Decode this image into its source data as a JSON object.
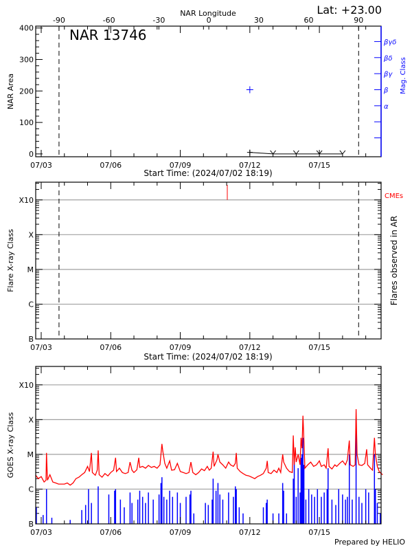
{
  "chart_data": [
    {
      "type": "line",
      "title": "NAR 13746",
      "corner_label": "Lat: +23.00",
      "top_axis_label": "NAR Longitude",
      "top_ticks": [
        -90,
        -60,
        -30,
        0,
        30,
        60,
        90
      ],
      "lon_range": [
        -104,
        103.5
      ],
      "ylabel": "NAR Area",
      "yticks": [
        0,
        100,
        200,
        300,
        400
      ],
      "ylim": [
        -9,
        406
      ],
      "xlabel": "Start Time: (2024/07/02 18:19)",
      "xticks": [
        "07/03",
        "07/06",
        "07/09",
        "07/12",
        "07/15"
      ],
      "right_axis_label": "Mag. Class",
      "mag_classes": [
        "",
        "",
        "α",
        "β",
        "βγ",
        "βδ",
        "βγδ"
      ],
      "mag_class_step": 51,
      "limb_longitudes": [
        -90,
        90
      ],
      "area_points": [
        [
          "07/12 00:00",
          5
        ],
        [
          "07/13 00:00",
          0
        ],
        [
          "07/14 00:00",
          0
        ],
        [
          "07/15 00:00",
          0
        ],
        [
          "07/16 00:00",
          0
        ]
      ],
      "mag_points": [
        [
          "07/12 00:00",
          "β"
        ]
      ],
      "colors": {
        "axis": "#000000",
        "mag": "#0000ff"
      }
    },
    {
      "type": "scatter",
      "ylabel": "Flare X-ray Class",
      "yticks": [
        "B",
        "C",
        "M",
        "X",
        "X10"
      ],
      "ylim_log": [
        -7,
        -2.49
      ],
      "grid": true,
      "xlabel": "Start Time: (2024/07/02 18:19)",
      "xticks": [
        "07/03",
        "07/06",
        "07/09",
        "07/12",
        "07/15"
      ],
      "right_axis_label": "Flares observed in AR",
      "cme_label": "CMEs",
      "cme_times": [
        "07/11 00:40"
      ],
      "limb_longitudes": [
        -90,
        90
      ],
      "flares": [],
      "colors": {
        "cme": "#ff0000",
        "grid": "#a0a0a0"
      }
    },
    {
      "type": "line",
      "ylabel": "GOES X-ray Class",
      "yticks": [
        "B",
        "C",
        "M",
        "X",
        "X10"
      ],
      "ylim_log": [
        -7,
        -2.47
      ],
      "grid": true,
      "xticks": [
        "07/03",
        "07/06",
        "07/09",
        "07/12",
        "07/15"
      ],
      "footer": "Prepared by HELIO",
      "colors": {
        "long": "#ff0000",
        "short": "#0000ff",
        "grid": "#a0a0a0"
      },
      "long_channel": [
        [
          "07/02 18:19",
          "C2.5"
        ],
        [
          "07/02 21:00",
          "C2.0"
        ],
        [
          "07/03 00:00",
          "C2.3"
        ],
        [
          "07/03 03:00",
          "C1.6"
        ],
        [
          "07/03 05:00",
          "C1.8"
        ],
        [
          "07/03 05:30",
          "M1.1"
        ],
        [
          "07/03 06:30",
          "C1.8"
        ],
        [
          "07/03 09:00",
          "C2.6"
        ],
        [
          "07/03 12:00",
          "C1.6"
        ],
        [
          "07/03 15:00",
          "C1.5"
        ],
        [
          "07/03 18:00",
          "C1.4"
        ],
        [
          "07/04 00:00",
          "C1.4"
        ],
        [
          "07/04 03:00",
          "C1.5"
        ],
        [
          "07/04 06:00",
          "C1.3"
        ],
        [
          "07/04 09:00",
          "C1.5"
        ],
        [
          "07/04 12:00",
          "C2.0"
        ],
        [
          "07/04 15:00",
          "C2.2"
        ],
        [
          "07/04 18:00",
          "C2.6"
        ],
        [
          "07/04 21:00",
          "C3.0"
        ],
        [
          "07/05 00:00",
          "C4.5"
        ],
        [
          "07/05 02:00",
          "C3.2"
        ],
        [
          "07/05 04:00",
          "M1.1"
        ],
        [
          "07/05 05:00",
          "C3.0"
        ],
        [
          "07/05 08:00",
          "C2.5"
        ],
        [
          "07/05 10:00",
          "C3.5"
        ],
        [
          "07/05 11:00",
          "M1.3"
        ],
        [
          "07/05 12:00",
          "C2.6"
        ],
        [
          "07/05 15:00",
          "C2.2"
        ],
        [
          "07/05 18:00",
          "C2.8"
        ],
        [
          "07/05 21:00",
          "C2.4"
        ],
        [
          "07/06 00:00",
          "C3.0"
        ],
        [
          "07/06 03:00",
          "C3.5"
        ],
        [
          "07/06 05:00",
          "C8.0"
        ],
        [
          "07/06 06:00",
          "C3.2"
        ],
        [
          "07/06 09:00",
          "C4.0"
        ],
        [
          "07/06 12:00",
          "C3.0"
        ],
        [
          "07/06 15:00",
          "C2.8"
        ],
        [
          "07/06 18:00",
          "C3.0"
        ],
        [
          "07/06 20:00",
          "C6.0"
        ],
        [
          "07/06 22:00",
          "C3.5"
        ],
        [
          "07/07 00:00",
          "C3.0"
        ],
        [
          "07/07 03:00",
          "C3.6"
        ],
        [
          "07/07 05:00",
          "C8.0"
        ],
        [
          "07/07 06:00",
          "C4.2"
        ],
        [
          "07/07 09:00",
          "C4.5"
        ],
        [
          "07/07 12:00",
          "C4.0"
        ],
        [
          "07/07 15:00",
          "C4.8"
        ],
        [
          "07/07 18:00",
          "C4.2"
        ],
        [
          "07/07 21:00",
          "C4.5"
        ],
        [
          "07/08 00:00",
          "C4.0"
        ],
        [
          "07/08 03:00",
          "C5.0"
        ],
        [
          "07/08 05:00",
          "M2.0"
        ],
        [
          "07/08 06:00",
          "M1.2"
        ],
        [
          "07/08 08:00",
          "C5.5"
        ],
        [
          "07/08 10:00",
          "C4.0"
        ],
        [
          "07/08 13:00",
          "C6.5"
        ],
        [
          "07/08 15:00",
          "C3.5"
        ],
        [
          "07/08 18:00",
          "C3.6"
        ],
        [
          "07/08 21:00",
          "C5.5"
        ],
        [
          "07/09 00:00",
          "C3.2"
        ],
        [
          "07/09 03:00",
          "C3.0"
        ],
        [
          "07/09 06:00",
          "C2.8"
        ],
        [
          "07/09 09:00",
          "C3.0"
        ],
        [
          "07/09 11:00",
          "C6.0"
        ],
        [
          "07/09 13:00",
          "C3.0"
        ],
        [
          "07/09 16:00",
          "C2.6"
        ],
        [
          "07/09 19:00",
          "C3.0"
        ],
        [
          "07/09 22:00",
          "C3.8"
        ],
        [
          "07/10 01:00",
          "C3.4"
        ],
        [
          "07/10 04:00",
          "C4.5"
        ],
        [
          "07/10 06:00",
          "C3.5"
        ],
        [
          "07/10 08:00",
          "C4.0"
        ],
        [
          "07/10 10:00",
          "M1.2"
        ],
        [
          "07/10 11:00",
          "C4.5"
        ],
        [
          "07/10 14:00",
          "C7.0"
        ],
        [
          "07/10 15:00",
          "M1.0"
        ],
        [
          "07/10 17:00",
          "C6.0"
        ],
        [
          "07/10 20:00",
          "C5.0"
        ],
        [
          "07/10 23:00",
          "C4.0"
        ],
        [
          "07/11 02:00",
          "C6.0"
        ],
        [
          "07/11 04:00",
          "C5.0"
        ],
        [
          "07/11 07:00",
          "C4.5"
        ],
        [
          "07/11 09:00",
          "C5.5"
        ],
        [
          "07/11 10:00",
          "M1.1"
        ],
        [
          "07/11 11:00",
          "C4.0"
        ],
        [
          "07/11 14:00",
          "C3.2"
        ],
        [
          "07/11 17:00",
          "C2.8"
        ],
        [
          "07/11 20:00",
          "C2.5"
        ],
        [
          "07/11 23:00",
          "C2.4"
        ],
        [
          "07/12 02:00",
          "C2.2"
        ],
        [
          "07/12 05:00",
          "C2.0"
        ],
        [
          "07/12 08:00",
          "C2.3"
        ],
        [
          "07/12 11:00",
          "C2.5"
        ],
        [
          "07/12 14:00",
          "C2.8"
        ],
        [
          "07/12 17:00",
          "C4.0"
        ],
        [
          "07/12 18:00",
          "C6.5"
        ],
        [
          "07/12 19:00",
          "C3.0"
        ],
        [
          "07/12 22:00",
          "C2.8"
        ],
        [
          "07/13 01:00",
          "C3.5"
        ],
        [
          "07/13 04:00",
          "C3.0"
        ],
        [
          "07/13 06:00",
          "C4.0"
        ],
        [
          "07/13 08:00",
          "C3.0"
        ],
        [
          "07/13 10:00",
          "M1.0"
        ],
        [
          "07/13 11:00",
          "C6.0"
        ],
        [
          "07/13 14:00",
          "C4.0"
        ],
        [
          "07/13 17:00",
          "C3.2"
        ],
        [
          "07/13 20:00",
          "C3.0"
        ],
        [
          "07/13 21:00",
          "M3.5"
        ],
        [
          "07/13 22:00",
          "C5.0"
        ],
        [
          "07/13 23:00",
          "M1.6"
        ],
        [
          "07/14 00:00",
          "C6.0"
        ],
        [
          "07/14 02:00",
          "M1.0"
        ],
        [
          "07/14 04:00",
          "C5.0"
        ],
        [
          "07/14 05:00",
          "M3.0"
        ],
        [
          "07/14 06:00",
          "M1.5"
        ],
        [
          "07/14 07:00",
          "X1.3"
        ],
        [
          "07/14 08:00",
          "M2.5"
        ],
        [
          "07/14 09:00",
          "C4.0"
        ],
        [
          "07/14 12:00",
          "C5.0"
        ],
        [
          "07/14 15:00",
          "C6.0"
        ],
        [
          "07/14 18:00",
          "C4.5"
        ],
        [
          "07/14 21:00",
          "C5.0"
        ],
        [
          "07/15 00:00",
          "C6.5"
        ],
        [
          "07/15 02:00",
          "C4.5"
        ],
        [
          "07/15 05:00",
          "C5.0"
        ],
        [
          "07/15 07:00",
          "C4.0"
        ],
        [
          "07/15 09:00",
          "M1.5"
        ],
        [
          "07/15 10:00",
          "C4.5"
        ],
        [
          "07/15 13:00",
          "C3.8"
        ],
        [
          "07/15 16:00",
          "C5.0"
        ],
        [
          "07/15 18:00",
          "C4.5"
        ],
        [
          "07/15 21:00",
          "C5.5"
        ],
        [
          "07/16 00:00",
          "C6.5"
        ],
        [
          "07/16 03:00",
          "C5.0"
        ],
        [
          "07/16 05:00",
          "C7.0"
        ],
        [
          "07/16 07:00",
          "M2.5"
        ],
        [
          "07/16 08:00",
          "C5.0"
        ],
        [
          "07/16 11:00",
          "C4.5"
        ],
        [
          "07/16 13:00",
          "C5.0"
        ],
        [
          "07/16 14:00",
          "X2.0"
        ],
        [
          "07/16 15:00",
          "M1.0"
        ],
        [
          "07/16 17:00",
          "C5.0"
        ],
        [
          "07/16 20:00",
          "C4.8"
        ],
        [
          "07/16 23:00",
          "C5.5"
        ],
        [
          "07/17 01:00",
          "M1.4"
        ],
        [
          "07/17 02:00",
          "C5.0"
        ],
        [
          "07/17 05:00",
          "C4.0"
        ],
        [
          "07/17 07:00",
          "C3.5"
        ],
        [
          "07/17 09:00",
          "M3.0"
        ],
        [
          "07/17 10:00",
          "M1.0"
        ],
        [
          "07/17 12:00",
          "C4.5"
        ],
        [
          "07/17 14:00",
          "C3.2"
        ],
        [
          "07/17 16:00",
          "C2.8"
        ],
        [
          "07/17 17:30",
          "C2.6"
        ]
      ],
      "short_channel": [
        [
          "07/02 19:00",
          "B3.0"
        ],
        [
          "07/03 02:00",
          "B1.8"
        ],
        [
          "07/03 05:30",
          "C1.0"
        ],
        [
          "07/03 11:00",
          "B1.5"
        ],
        [
          "07/04 06:00",
          "B1.3"
        ],
        [
          "07/04 18:00",
          "B2.5"
        ],
        [
          "07/04 22:00",
          "B3.5"
        ],
        [
          "07/05 01:00",
          "C1.0"
        ],
        [
          "07/05 04:00",
          "B4.0"
        ],
        [
          "07/05 11:00",
          "C1.2"
        ],
        [
          "07/05 22:00",
          "B7.0"
        ],
        [
          "07/06 04:00",
          "B9.0"
        ],
        [
          "07/06 05:00",
          "C1.0"
        ],
        [
          "07/06 10:00",
          "B5.0"
        ],
        [
          "07/06 14:00",
          "B3.0"
        ],
        [
          "07/06 20:00",
          "B8.0"
        ],
        [
          "07/06 22:00",
          "B4.0"
        ],
        [
          "07/07 04:00",
          "B5.0"
        ],
        [
          "07/07 06:00",
          "B9.0"
        ],
        [
          "07/07 09:00",
          "B6.0"
        ],
        [
          "07/07 12:00",
          "B4.0"
        ],
        [
          "07/07 15:00",
          "B8.0"
        ],
        [
          "07/07 20:00",
          "B5.0"
        ],
        [
          "07/08 02:00",
          "B7.0"
        ],
        [
          "07/08 04:00",
          "C1.5"
        ],
        [
          "07/08 05:00",
          "C2.2"
        ],
        [
          "07/08 07:00",
          "B6.0"
        ],
        [
          "07/08 10:00",
          "B5.0"
        ],
        [
          "07/08 13:00",
          "B9.0"
        ],
        [
          "07/08 16:00",
          "B6.0"
        ],
        [
          "07/08 21:00",
          "B8.0"
        ],
        [
          "07/09 00:00",
          "B4.0"
        ],
        [
          "07/09 06:00",
          "B6.0"
        ],
        [
          "07/09 10:00",
          "B7.0"
        ],
        [
          "07/09 11:00",
          "B9.0"
        ],
        [
          "07/09 14:00",
          "B2.0"
        ],
        [
          "07/10 02:00",
          "B4.0"
        ],
        [
          "07/10 05:00",
          "B3.5"
        ],
        [
          "07/10 09:00",
          "B5.0"
        ],
        [
          "07/10 10:00",
          "C2.0"
        ],
        [
          "07/10 13:00",
          "B9.0"
        ],
        [
          "07/10 15:00",
          "C1.5"
        ],
        [
          "07/10 17:00",
          "B7.0"
        ],
        [
          "07/10 20:00",
          "B5.0"
        ],
        [
          "07/11 02:00",
          "B8.0"
        ],
        [
          "07/11 07:00",
          "B6.0"
        ],
        [
          "07/11 09:00",
          "C1.2"
        ],
        [
          "07/11 10:00",
          "C1.0"
        ],
        [
          "07/11 13:00",
          "B3.0"
        ],
        [
          "07/11 17:00",
          "B2.0"
        ],
        [
          "07/12 14:00",
          "B3.0"
        ],
        [
          "07/12 17:00",
          "B4.0"
        ],
        [
          "07/12 18:00",
          "B5.0"
        ],
        [
          "07/13 00:00",
          "B2.0"
        ],
        [
          "07/13 06:00",
          "B2.0"
        ],
        [
          "07/13 10:00",
          "C1.5"
        ],
        [
          "07/13 11:00",
          "B9.0"
        ],
        [
          "07/13 14:00",
          "B2.0"
        ],
        [
          "07/13 21:00",
          "C2.0"
        ],
        [
          "07/13 22:00",
          "M1.0"
        ],
        [
          "07/14 00:00",
          "B6.0"
        ],
        [
          "07/14 02:00",
          "C4.0"
        ],
        [
          "07/14 04:00",
          "B8.0"
        ],
        [
          "07/14 05:00",
          "C8.0"
        ],
        [
          "07/14 06:00",
          "M1.0"
        ],
        [
          "07/14 07:00",
          "M3.0"
        ],
        [
          "07/14 08:00",
          "C5.0"
        ],
        [
          "07/14 10:00",
          "B5.0"
        ],
        [
          "07/14 13:00",
          "C1.0"
        ],
        [
          "07/14 16:00",
          "B7.0"
        ],
        [
          "07/14 19:00",
          "B6.0"
        ],
        [
          "07/14 22:00",
          "C1.0"
        ],
        [
          "07/15 02:00",
          "B6.0"
        ],
        [
          "07/15 05:00",
          "B8.0"
        ],
        [
          "07/15 08:00",
          "C1.0"
        ],
        [
          "07/15 09:00",
          "C4.0"
        ],
        [
          "07/15 13:00",
          "B5.0"
        ],
        [
          "07/15 17:00",
          "B3.5"
        ],
        [
          "07/15 20:00",
          "C1.0"
        ],
        [
          "07/16 00:00",
          "B7.0"
        ],
        [
          "07/16 03:00",
          "B5.0"
        ],
        [
          "07/16 05:00",
          "B6.0"
        ],
        [
          "07/16 07:00",
          "M1.0"
        ],
        [
          "07/16 10:00",
          "B5.0"
        ],
        [
          "07/16 14:00",
          "X1.0"
        ],
        [
          "07/16 17:00",
          "B6.0"
        ],
        [
          "07/16 20:00",
          "B4.0"
        ],
        [
          "07/17 00:00",
          "C1.0"
        ],
        [
          "07/17 03:00",
          "B8.0"
        ],
        [
          "07/17 09:00",
          "M1.0"
        ],
        [
          "07/17 10:00",
          "C1.0"
        ],
        [
          "07/17 12:00",
          "B4.0"
        ],
        [
          "07/17 15:00",
          "B2.0"
        ]
      ]
    }
  ]
}
